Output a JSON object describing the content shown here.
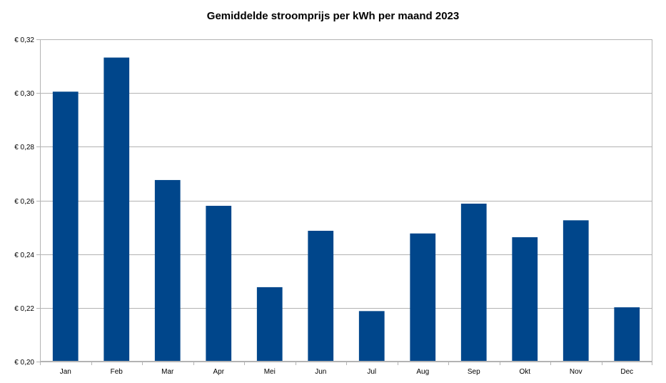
{
  "chart_data": {
    "type": "bar",
    "title": "Gemiddelde stroomprijs per kWh per maand 2023",
    "categories": [
      "Jan",
      "Feb",
      "Mar",
      "Apr",
      "Mei",
      "Jun",
      "Jul",
      "Aug",
      "Sep",
      "Okt",
      "Nov",
      "Dec"
    ],
    "values": [
      0.3005,
      0.3132,
      0.2676,
      0.258,
      0.2277,
      0.2487,
      0.2188,
      0.2477,
      0.2588,
      0.2463,
      0.2526,
      0.2202
    ],
    "ylim": [
      0.2,
      0.32
    ],
    "yticks": [
      0.2,
      0.22,
      0.24,
      0.26,
      0.28,
      0.3,
      0.32
    ],
    "ytick_labels": [
      "€ 0,20",
      "€ 0,22",
      "€ 0,24",
      "€ 0,26",
      "€ 0,28",
      "€ 0,30",
      "€ 0,32"
    ],
    "xlabel": "",
    "ylabel": "",
    "grid": true,
    "legend": "none",
    "bar_color": "#00468B",
    "grid_color": "#B3B3B3"
  }
}
